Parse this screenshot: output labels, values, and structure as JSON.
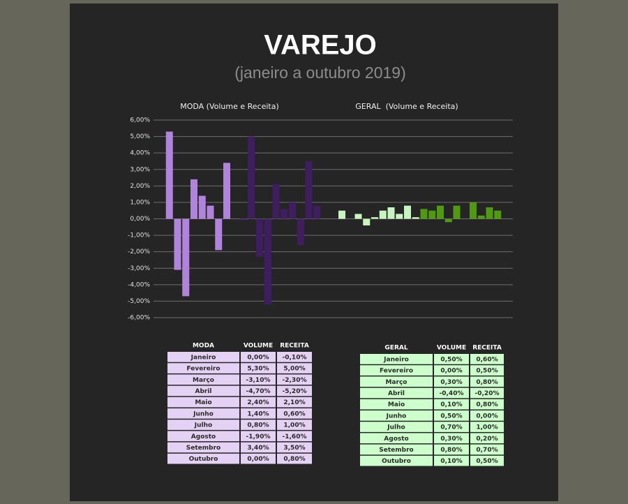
{
  "title": "VAREJO",
  "subtitle": "(janeiro a outubro 2019)",
  "chart_data": [
    {
      "type": "bar",
      "title": "MODA (Volume e Receita)",
      "ylim": [
        -6,
        6
      ],
      "yticks": [
        {
          "value": 6,
          "label": "6,00%"
        },
        {
          "value": 5,
          "label": "5,00%"
        },
        {
          "value": 4,
          "label": "4,00%"
        },
        {
          "value": 3,
          "label": "3,00%"
        },
        {
          "value": 2,
          "label": "2,00%"
        },
        {
          "value": 1,
          "label": "1,00%"
        },
        {
          "value": 0,
          "label": "0,00%"
        },
        {
          "value": -1,
          "label": "-1,00%"
        },
        {
          "value": -2,
          "label": "-2,00%"
        },
        {
          "value": -3,
          "label": "-3,00%"
        },
        {
          "value": -4,
          "label": "-4,00%"
        },
        {
          "value": -5,
          "label": "-5,00%"
        },
        {
          "value": -6,
          "label": "-6,00%"
        }
      ],
      "grid": true,
      "series": [
        {
          "color": "#b184dc",
          "values": [
            0,
            5.3,
            -3.1,
            -4.7,
            2.4,
            1.4,
            0.8,
            -1.9,
            3.4,
            0
          ]
        },
        {
          "color": "#3e1e5e",
          "values": [
            -0.1,
            5.0,
            -2.3,
            -5.2,
            2.1,
            0.6,
            1.0,
            -1.6,
            3.5,
            0.8
          ]
        }
      ]
    },
    {
      "type": "bar",
      "title": "GERAL  (Volume e Receita)",
      "ylim": [
        -6,
        6
      ],
      "series": [
        {
          "color": "#c8f5bf",
          "values": [
            0.5,
            0,
            0.3,
            -0.4,
            0.1,
            0.5,
            0.7,
            0.3,
            0.8,
            0.1
          ]
        },
        {
          "color": "#4f9a0f",
          "values": [
            0.6,
            0.5,
            0.8,
            -0.2,
            0.8,
            0,
            1.0,
            0.2,
            0.7,
            0.5
          ]
        }
      ]
    }
  ],
  "tables": [
    {
      "fill": "#e5d1f3",
      "header": [
        "MODA",
        "VOLUME",
        "RECEITA"
      ],
      "rows": [
        [
          "Janeiro",
          "0,00%",
          "-0,10%"
        ],
        [
          "Fevereiro",
          "5,30%",
          "5,00%"
        ],
        [
          "Março",
          "-3,10%",
          "-2,30%"
        ],
        [
          "Abril",
          "-4,70%",
          "-5,20%"
        ],
        [
          "Maio",
          "2,40%",
          "2,10%"
        ],
        [
          "Junho",
          "1,40%",
          "0,60%"
        ],
        [
          "Julho",
          "0,80%",
          "1,00%"
        ],
        [
          "Agosto",
          "-1,90%",
          "-1,60%"
        ],
        [
          "Setembro",
          "3,40%",
          "3,50%"
        ],
        [
          "Outubro",
          "0,00%",
          "0,80%"
        ]
      ]
    },
    {
      "fill": "#ccffcc",
      "header": [
        "GERAL",
        "VOLUME",
        "RECEITA"
      ],
      "rows": [
        [
          "Janeiro",
          "0,50%",
          "0,60%"
        ],
        [
          "Fevereiro",
          "0,00%",
          "0,50%"
        ],
        [
          "Março",
          "0,30%",
          "0,80%"
        ],
        [
          "Abril",
          "-0,40%",
          "-0,20%"
        ],
        [
          "Maio",
          "0,10%",
          "0,80%"
        ],
        [
          "Junho",
          "0,50%",
          "0,00%"
        ],
        [
          "Julho",
          "0,70%",
          "1,00%"
        ],
        [
          "Agosto",
          "0,30%",
          "0,20%"
        ],
        [
          "Setembro",
          "0,80%",
          "0,70%"
        ],
        [
          "Outubro",
          "0,10%",
          "0,50%"
        ]
      ]
    }
  ]
}
